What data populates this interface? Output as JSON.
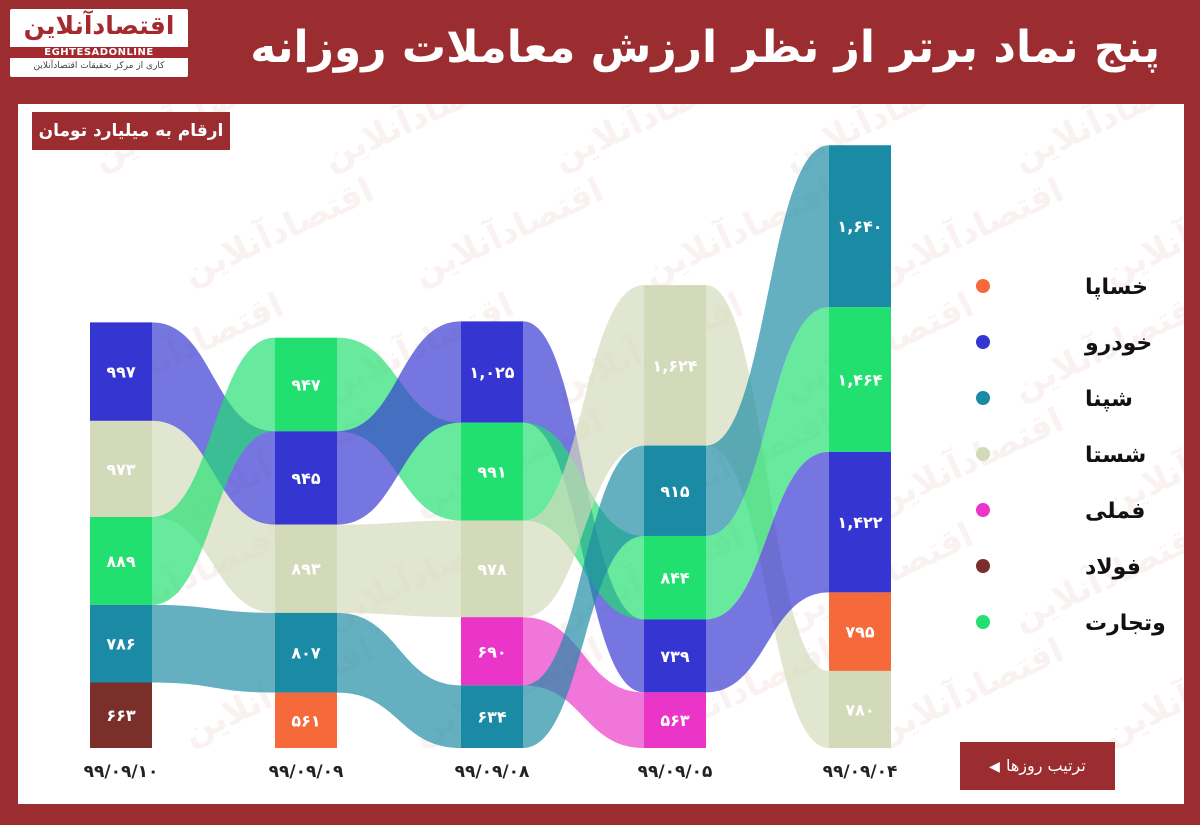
{
  "logo": {
    "name": "اقتصادآنلاین",
    "latin": "EGHTESADONLINE",
    "tagline": "کاری از مرکز تحقیقات اقتصادآنلاین"
  },
  "title": "پنج نماد برتر از نظر ارزش معاملات روزانه",
  "unit_note": "ارقام به میلیارد تومان",
  "order_note": "ترتیب روزها",
  "colors": {
    "frame": "#9b2d30",
    "خساپا": "#f5693b",
    "خودرو": "#3535d2",
    "شپنا": "#1b8aa4",
    "شستا": "#d3dab9",
    "فملی": "#ea35c8",
    "فولاد": "#7a2f2a",
    "وتجارت": "#21e070"
  },
  "chart_data": {
    "type": "bar",
    "title": "پنج نماد برتر از نظر ارزش معاملات روزانه",
    "unit": "ارقام به میلیارد تومان",
    "xlabel": "ترتیب روزها",
    "categories": [
      "99/09/10",
      "99/09/09",
      "99/09/08",
      "99/09/05",
      "99/09/04"
    ],
    "category_labels": [
      "۹۹/۰۹/۱۰",
      "۹۹/۰۹/۰۹",
      "۹۹/۰۹/۰۸",
      "۹۹/۰۹/۰۵",
      "۹۹/۰۹/۰۴"
    ],
    "legend": [
      "خساپا",
      "خودرو",
      "شپنا",
      "شستا",
      "فملی",
      "فولاد",
      "وتجارت"
    ],
    "legend_position": "right",
    "days": [
      {
        "date": "99/09/10",
        "stack": [
          {
            "symbol": "خودرو",
            "value": 997,
            "label": "۹۹۷"
          },
          {
            "symbol": "شستا",
            "value": 973,
            "label": "۹۷۳"
          },
          {
            "symbol": "وتجارت",
            "value": 889,
            "label": "۸۸۹"
          },
          {
            "symbol": "شپنا",
            "value": 786,
            "label": "۷۸۶"
          },
          {
            "symbol": "فولاد",
            "value": 663,
            "label": "۶۶۳"
          }
        ]
      },
      {
        "date": "99/09/09",
        "stack": [
          {
            "symbol": "وتجارت",
            "value": 947,
            "label": "۹۴۷"
          },
          {
            "symbol": "خودرو",
            "value": 945,
            "label": "۹۴۵"
          },
          {
            "symbol": "شستا",
            "value": 893,
            "label": "۸۹۳"
          },
          {
            "symbol": "شپنا",
            "value": 807,
            "label": "۸۰۷"
          },
          {
            "symbol": "خساپا",
            "value": 561,
            "label": "۵۶۱"
          }
        ]
      },
      {
        "date": "99/09/08",
        "stack": [
          {
            "symbol": "خودرو",
            "value": 1025,
            "label": "۱,۰۲۵"
          },
          {
            "symbol": "وتجارت",
            "value": 991,
            "label": "۹۹۱"
          },
          {
            "symbol": "شستا",
            "value": 978,
            "label": "۹۷۸"
          },
          {
            "symbol": "فملی",
            "value": 690,
            "label": "۶۹۰"
          },
          {
            "symbol": "شپنا",
            "value": 634,
            "label": "۶۳۴"
          }
        ]
      },
      {
        "date": "99/09/05",
        "stack": [
          {
            "symbol": "شستا",
            "value": 1624,
            "label": "۱,۶۲۴"
          },
          {
            "symbol": "شپنا",
            "value": 915,
            "label": "۹۱۵"
          },
          {
            "symbol": "وتجارت",
            "value": 844,
            "label": "۸۴۴"
          },
          {
            "symbol": "خودرو",
            "value": 739,
            "label": "۷۳۹"
          },
          {
            "symbol": "فملی",
            "value": 563,
            "label": "۵۶۳"
          }
        ]
      },
      {
        "date": "99/09/04",
        "stack": [
          {
            "symbol": "شپنا",
            "value": 1640,
            "label": "۱,۶۴۰"
          },
          {
            "symbol": "وتجارت",
            "value": 1464,
            "label": "۱,۴۶۴"
          },
          {
            "symbol": "خودرو",
            "value": 1422,
            "label": "۱,۴۲۲"
          },
          {
            "symbol": "خساپا",
            "value": 795,
            "label": "۷۹۵"
          },
          {
            "symbol": "شستا",
            "value": 780,
            "label": "۷۸۰"
          }
        ]
      }
    ]
  }
}
